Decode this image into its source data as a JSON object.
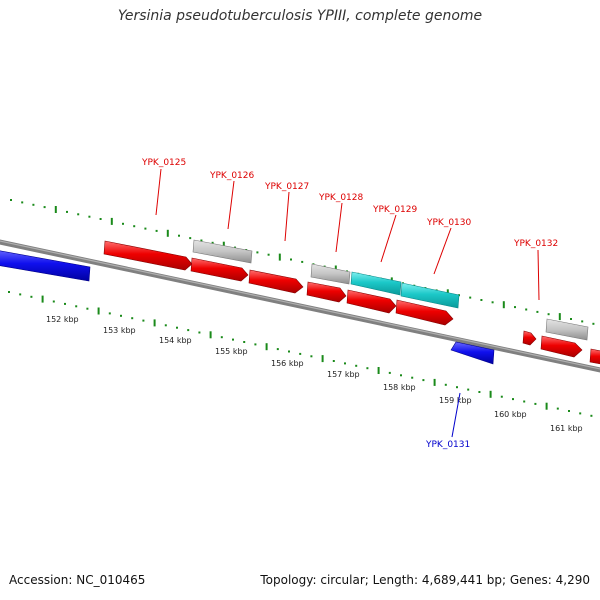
{
  "title": "Yersinia pseudotuberculosis YPIII, complete genome",
  "footer": {
    "accession": "Accession: NC_010465",
    "summary": "Topology: circular; Length: 4,689,441 bp; Genes: 4,290"
  },
  "colors": {
    "backbone": "#808080",
    "forward_gene": "#ff0000",
    "reverse_gene": "#0000ff",
    "rna_gene": "#00cccc",
    "other_feature": "#bbbbbb",
    "tick": "#1a8a1a",
    "label_forward": "#dd0000",
    "label_reverse": "#0000cc"
  },
  "scale_labels": [
    "152 kbp",
    "153 kbp",
    "154 kbp",
    "155 kbp",
    "156 kbp",
    "157 kbp",
    "158 kbp",
    "159 kbp",
    "160 kbp",
    "161 kbp"
  ],
  "gene_labels": {
    "forward": [
      "YPK_0125",
      "YPK_0126",
      "YPK_0127",
      "YPK_0128",
      "YPK_0129",
      "YPK_0130",
      "YPK_0132"
    ],
    "reverse": [
      "YPK_0131"
    ]
  }
}
